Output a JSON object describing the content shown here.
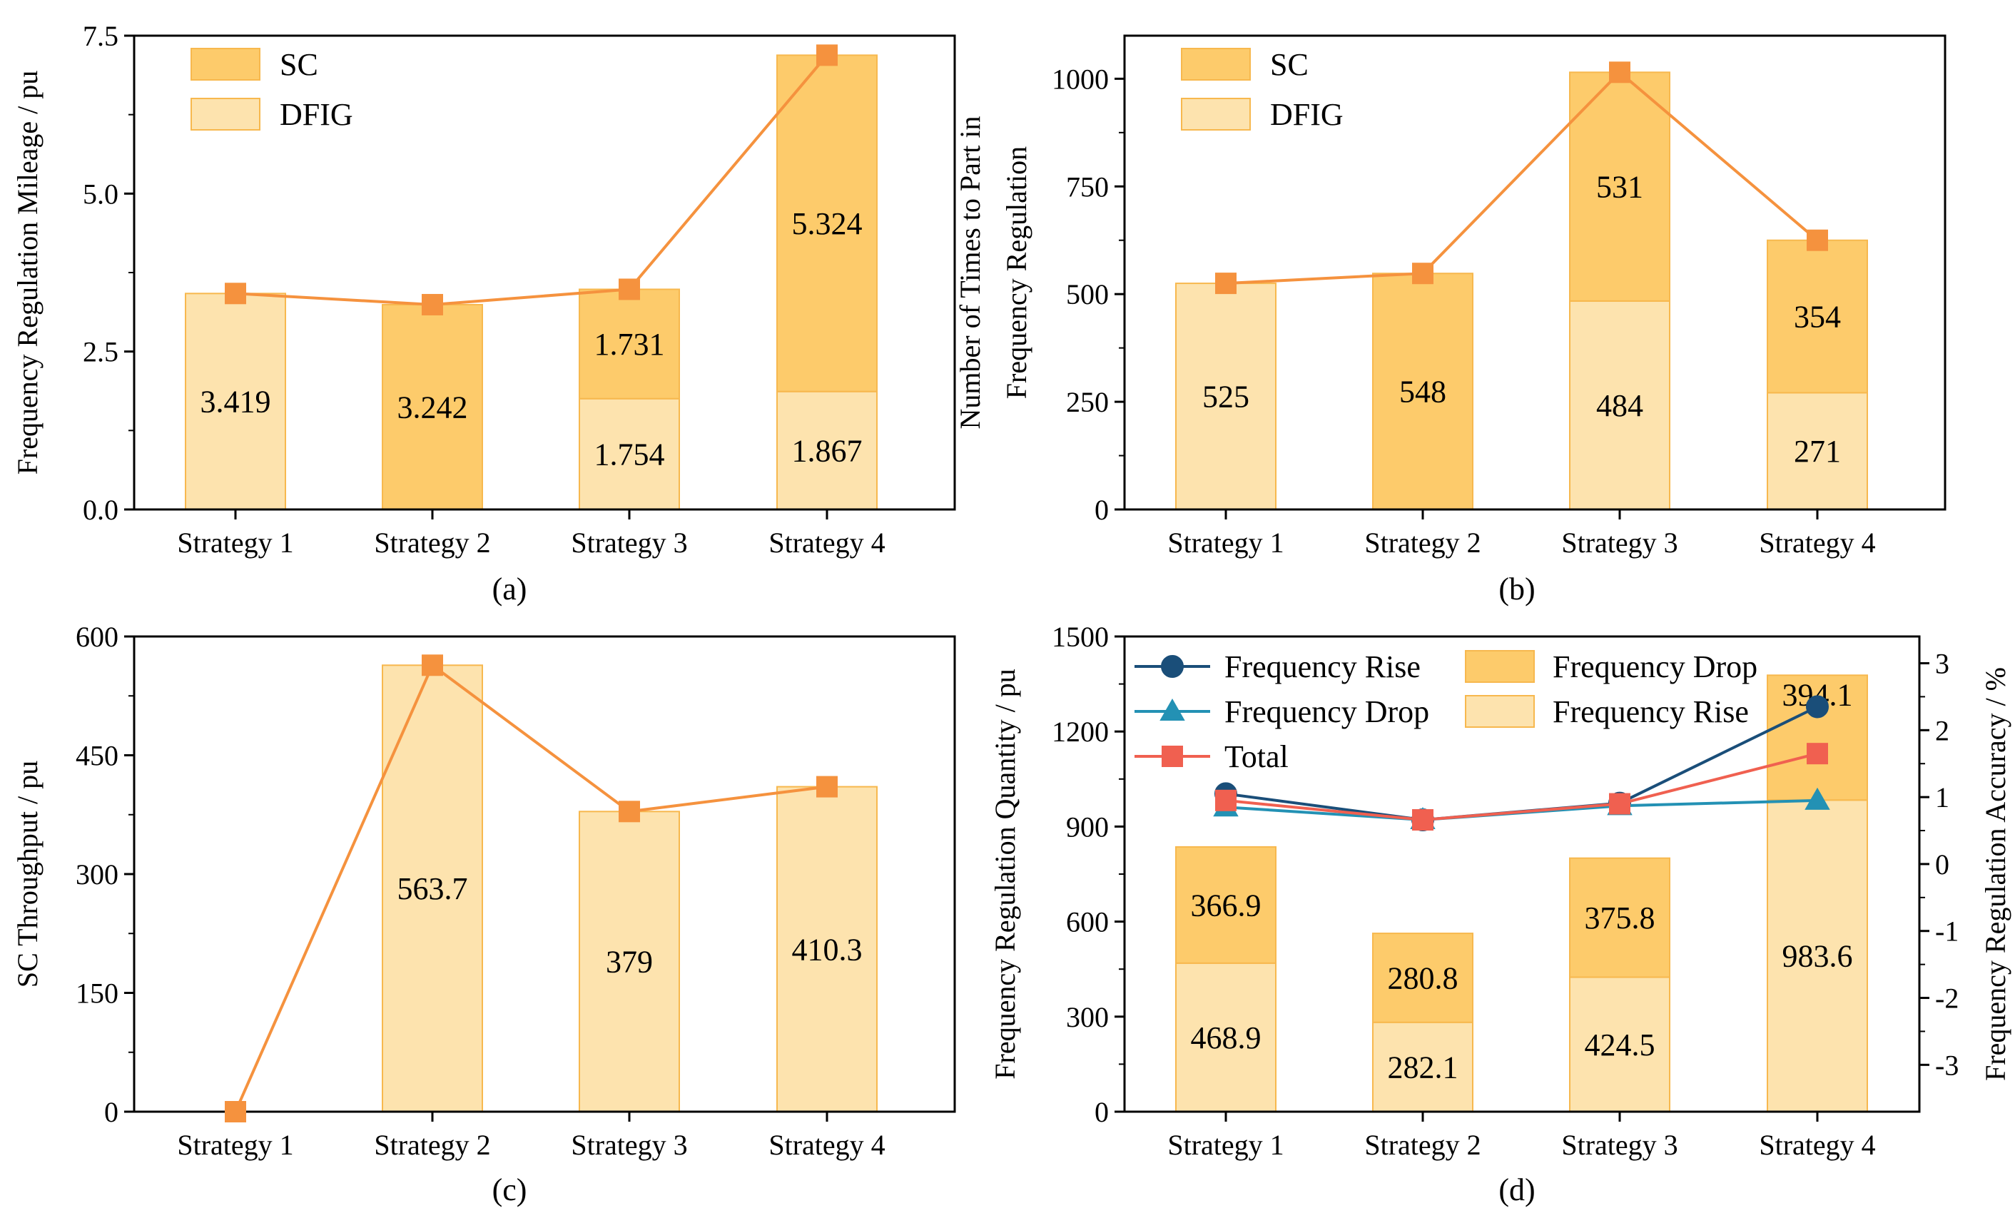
{
  "chart_data": [
    {
      "type": "bar",
      "panel_label": "(a)",
      "stacked": true,
      "categories": [
        "Strategy 1",
        "Strategy 2",
        "Strategy 3",
        "Strategy 4"
      ],
      "ylabel": "Frequency Regulation Mileage / pu",
      "ylim": [
        0,
        7.5
      ],
      "yticks": [
        "0.0",
        "2.5",
        "5.0",
        "7.5"
      ],
      "legend": {
        "position": "top-left",
        "entries": [
          "SC",
          "DFIG"
        ]
      },
      "series": [
        {
          "name": "DFIG",
          "values": [
            3.419,
            0,
            1.754,
            1.867
          ],
          "labels": [
            "3.419",
            "",
            "1.754",
            "1.867"
          ],
          "color": "#FDE3AE"
        },
        {
          "name": "SC",
          "values": [
            0,
            3.242,
            1.731,
            5.324
          ],
          "labels": [
            "",
            "3.242",
            "1.731",
            "5.324"
          ],
          "color": "#FDCB6B"
        }
      ],
      "line": {
        "values": [
          3.419,
          3.242,
          3.485,
          7.191
        ],
        "color": "#F5923E",
        "marker": "square"
      }
    },
    {
      "type": "bar",
      "panel_label": "(b)",
      "stacked": true,
      "categories": [
        "Strategy 1",
        "Strategy 2",
        "Strategy 3",
        "Strategy 4"
      ],
      "ylabel": "Number of Times to Part in Frequency Regulation",
      "ylabel_lines": [
        "Number of Times to Part in",
        "Frequency Regulation"
      ],
      "ylim": [
        0,
        1100
      ],
      "yticks": [
        "0",
        "250",
        "500",
        "750",
        "1000"
      ],
      "legend": {
        "position": "top-left",
        "entries": [
          "SC",
          "DFIG"
        ]
      },
      "series": [
        {
          "name": "DFIG",
          "values": [
            525,
            0,
            484,
            271
          ],
          "labels": [
            "525",
            "",
            "484",
            "271"
          ],
          "color": "#FDE3AE"
        },
        {
          "name": "SC",
          "values": [
            0,
            548,
            531,
            354
          ],
          "labels": [
            "",
            "548",
            "531",
            "354"
          ],
          "color": "#FDCB6B"
        }
      ],
      "line": {
        "values": [
          525,
          548,
          1015,
          625
        ],
        "color": "#F5923E",
        "marker": "square"
      }
    },
    {
      "type": "bar",
      "panel_label": "(c)",
      "categories": [
        "Strategy 1",
        "Strategy 2",
        "Strategy 3",
        "Strategy 4"
      ],
      "ylabel": "SC Throughput / pu",
      "ylim": [
        0,
        600
      ],
      "yticks": [
        "0",
        "150",
        "300",
        "450",
        "600"
      ],
      "series": [
        {
          "values": [
            0,
            563.7,
            379,
            410.3
          ],
          "labels": [
            "",
            "563.7",
            "379",
            "410.3"
          ],
          "color": "#FDE3AE"
        }
      ],
      "line": {
        "values": [
          0,
          563.7,
          379,
          410.3
        ],
        "color": "#F5923E",
        "marker": "square"
      }
    },
    {
      "type": "bar",
      "panel_label": "(d)",
      "stacked": true,
      "categories": [
        "Strategy 1",
        "Strategy 2",
        "Strategy 3",
        "Strategy 4"
      ],
      "ylabel": "Frequency Regulation Quantity / pu",
      "ylim": [
        0,
        1500
      ],
      "yticks": [
        "0",
        "300",
        "600",
        "900",
        "1200",
        "1500"
      ],
      "y2label": "Frequency Regulation Accuracy / %",
      "y2lim": [
        -3.7,
        3.4
      ],
      "y2ticks": [
        "-3",
        "-2",
        "-1",
        "0",
        "1",
        "2",
        "3"
      ],
      "legend": {
        "position": "top",
        "entries": [
          "Frequency Rise",
          "Frequency Drop",
          "Total",
          "Frequency Drop",
          "Frequency Rise"
        ]
      },
      "series": [
        {
          "name": "Frequency Rise",
          "values": [
            468.9,
            282.1,
            424.5,
            983.6
          ],
          "labels": [
            "468.9",
            "282.1",
            "424.5",
            "983.6"
          ],
          "color": "#FDE3AE"
        },
        {
          "name": "Frequency Drop",
          "values": [
            366.9,
            280.8,
            375.8,
            394.1
          ],
          "labels": [
            "366.9",
            "280.8",
            "375.8",
            "394.1"
          ],
          "color": "#FDCB6B"
        }
      ],
      "lines": [
        {
          "name": "Frequency Rise",
          "axis": "right",
          "values": [
            1.05,
            0.66,
            0.91,
            2.35
          ],
          "color": "#1A4E79",
          "marker": "circle"
        },
        {
          "name": "Frequency Drop",
          "axis": "right",
          "values": [
            0.85,
            0.66,
            0.87,
            0.95
          ],
          "color": "#2391B4",
          "marker": "triangle"
        },
        {
          "name": "Total",
          "axis": "right",
          "values": [
            0.95,
            0.66,
            0.9,
            1.65
          ],
          "color": "#F06050",
          "marker": "square"
        }
      ]
    }
  ]
}
